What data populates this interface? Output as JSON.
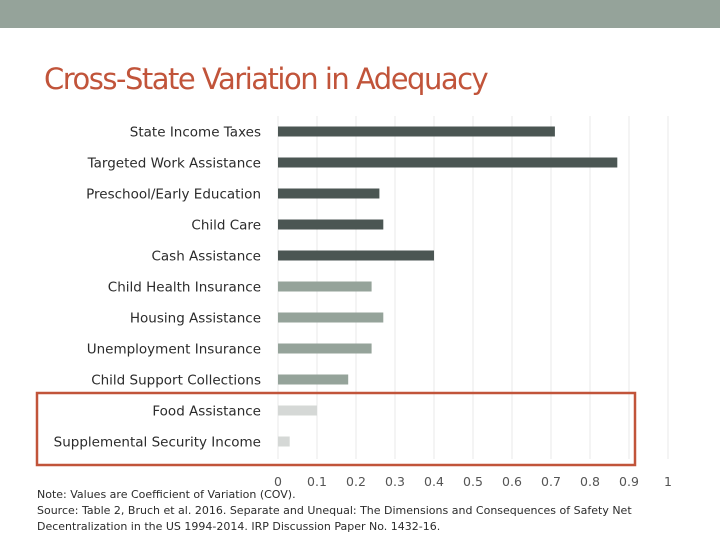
{
  "slide": {
    "title": "Cross-State Variation in Adequacy",
    "note": "Note: Values are Coefficient of Variation (COV).",
    "source": "Source: Table 2, Bruch et al. 2016. Separate and Unequal: The Dimensions and Consequences of Safety Net Decentralization in the US 1994-2014. IRP Discussion Paper No. 1432-16."
  },
  "colors": {
    "background": "#ffffff",
    "top_band": "#95a39a",
    "title": "#c1543a",
    "bar_dark": "#4b5653",
    "bar_medium": "#95a39a",
    "bar_light": "#d5d8d6",
    "highlight_box": "#c1543a",
    "gridline": "#e8e8e8"
  },
  "chart_data": {
    "type": "bar",
    "orientation": "horizontal",
    "title": "Cross-State Variation in Adequacy",
    "xlabel": "",
    "ylabel": "",
    "xlim": [
      0,
      1
    ],
    "xticks": [
      "0",
      "0.1",
      "0.2",
      "0.3",
      "0.4",
      "0.5",
      "0.6",
      "0.7",
      "0.8",
      "0.9",
      "1"
    ],
    "grid": true,
    "categories": [
      "State Income Taxes",
      "Targeted Work Assistance",
      "Preschool/Early Education",
      "Child Care",
      "Cash Assistance",
      "Child Health Insurance",
      "Housing Assistance",
      "Unemployment Insurance",
      "Child Support Collections",
      "Food Assistance",
      "Supplemental Security Income"
    ],
    "values": [
      0.71,
      0.87,
      0.26,
      0.27,
      0.4,
      0.24,
      0.27,
      0.24,
      0.18,
      0.1,
      0.03
    ],
    "bar_color_groups": [
      "dark",
      "dark",
      "dark",
      "dark",
      "dark",
      "medium",
      "medium",
      "medium",
      "medium",
      "light",
      "light"
    ],
    "highlighted_categories": [
      "Food Assistance",
      "Supplemental Security Income"
    ]
  }
}
